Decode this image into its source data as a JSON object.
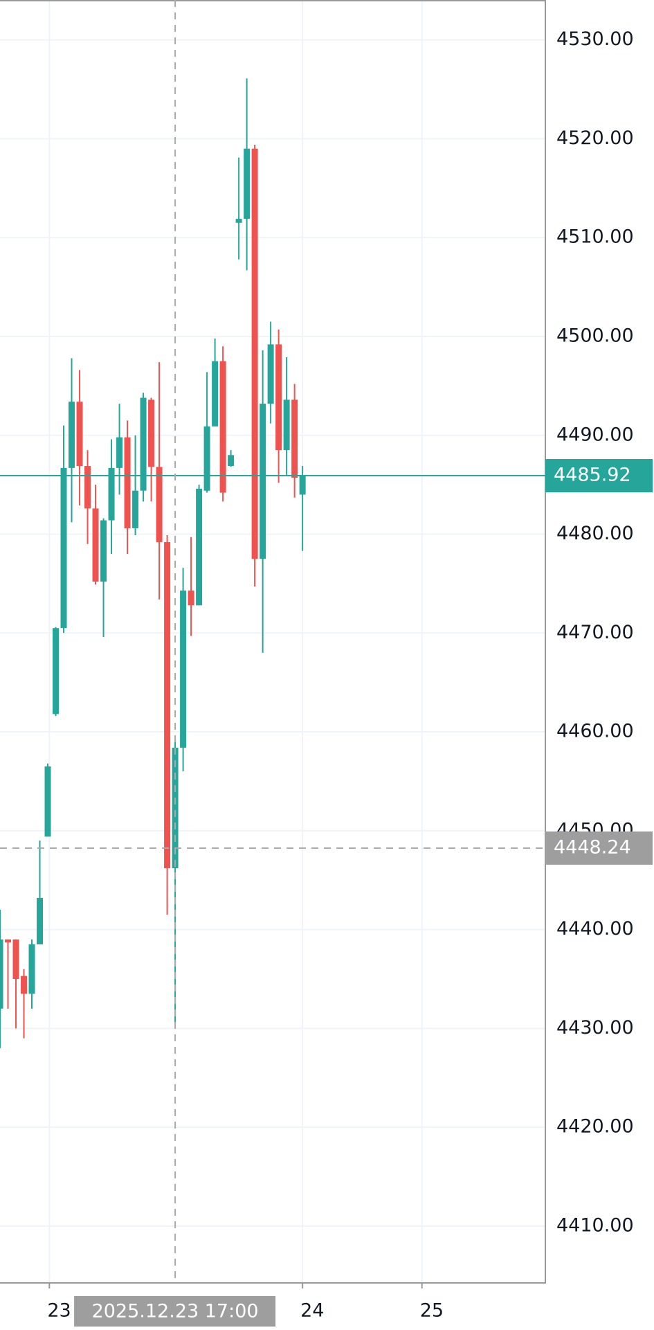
{
  "chart_data": {
    "type": "candlestick",
    "categories": [
      null,
      null,
      null,
      null,
      null,
      null,
      null,
      null,
      null,
      null,
      null,
      null,
      null,
      null,
      null,
      null,
      null,
      null,
      null,
      null,
      null,
      null,
      null,
      null,
      null,
      null,
      null,
      null,
      null,
      null,
      null,
      null,
      null,
      null,
      null,
      null,
      null,
      null,
      null
    ],
    "open": [
      4432,
      4439,
      4439,
      4435.3,
      4433.5,
      4438.5,
      4449.4,
      4461.8,
      4470.5,
      4486.7,
      4493.4,
      4486.9,
      4482.6,
      4475.2,
      4481.4,
      4486.7,
      4489.8,
      4480.6,
      4484.4,
      4493.6,
      4486.8,
      4479.2,
      4446.2,
      4458.4,
      4474.3,
      4472.8,
      4484.4,
      4490.9,
      4497.5,
      4486.9,
      4511.5,
      4511.9,
      4519,
      4477.5,
      4493.2,
      4499.2,
      4488.5,
      4493.6,
      4484
    ],
    "high": [
      4442,
      4439,
      4439,
      4436,
      4439,
      4449,
      4456.8,
      4470.6,
      4491,
      4497.8,
      4496.6,
      4488.5,
      4485,
      4481.6,
      4489.6,
      4493.2,
      4491.5,
      4490,
      4494.3,
      4493.8,
      4497.4,
      4479.9,
      4459.3,
      4476.6,
      4479.7,
      4485,
      4496.4,
      4499.8,
      4499,
      4488.5,
      4518.1,
      4526.1,
      4519.4,
      4498.6,
      4501.5,
      4500.7,
      4497.9,
      4495.2,
      4486.9
    ],
    "low": [
      4428,
      4432,
      4430,
      4429,
      4432,
      4438.5,
      4449.4,
      4461.6,
      4470,
      4481.2,
      4482.9,
      4479,
      4474.9,
      4469.6,
      4478,
      4484,
      4478,
      4479.9,
      4483.3,
      4483.3,
      4473.4,
      4441.5,
      4430.5,
      4456,
      4469.7,
      4472.8,
      4484.2,
      4490.9,
      4483.3,
      4486.8,
      4507.8,
      4506.7,
      4474.7,
      4468,
      4491.2,
      4485.2,
      4485.9,
      4483.7,
      4478.3
    ],
    "close": [
      4439,
      4438.7,
      4435,
      4433.5,
      4438.5,
      4443.2,
      4456.5,
      4470.5,
      4486.7,
      4493.4,
      4486.9,
      4482.6,
      4475.2,
      4481.4,
      4486.7,
      4489.8,
      4480.6,
      4484.4,
      4493.8,
      4486.8,
      4479.2,
      4446.2,
      4458.4,
      4474.3,
      4472.8,
      4484.6,
      4490.9,
      4497.5,
      4484.2,
      4488,
      4511.9,
      4519,
      4477.5,
      4493.2,
      4499.2,
      4488.5,
      4493.6,
      4485.7,
      4485.92
    ],
    "up_color": "#26a69a",
    "down_color": "#ef5350",
    "xlim": [
      0,
      68.5
    ],
    "xticks": [
      {
        "value": 6.2,
        "label": "23"
      },
      {
        "value": 38,
        "label": "24"
      },
      {
        "value": 53,
        "label": "25"
      }
    ],
    "ylim": [
      4404.25,
      4534.04
    ],
    "yticks": [
      {
        "value": 4410,
        "label": "4410.00"
      },
      {
        "value": 4420,
        "label": "4420.00"
      },
      {
        "value": 4430,
        "label": "4430.00"
      },
      {
        "value": 4440,
        "label": "4440.00"
      },
      {
        "value": 4450,
        "label": "4450.00"
      },
      {
        "value": 4460,
        "label": "4460.00"
      },
      {
        "value": 4470,
        "label": "4470.00"
      },
      {
        "value": 4480,
        "label": "4480.00"
      },
      {
        "value": 4490,
        "label": "4490.00"
      },
      {
        "value": 4500,
        "label": "4500.00"
      },
      {
        "value": 4510,
        "label": "4510.00"
      },
      {
        "value": 4520,
        "label": "4520.00"
      },
      {
        "value": 4530,
        "label": "4530.00"
      }
    ],
    "grid": true,
    "last_price": 4485.92,
    "crosshair": {
      "x": {
        "value": 22,
        "label": "2025.12.23 17:00"
      },
      "y": 4448.24
    }
  }
}
